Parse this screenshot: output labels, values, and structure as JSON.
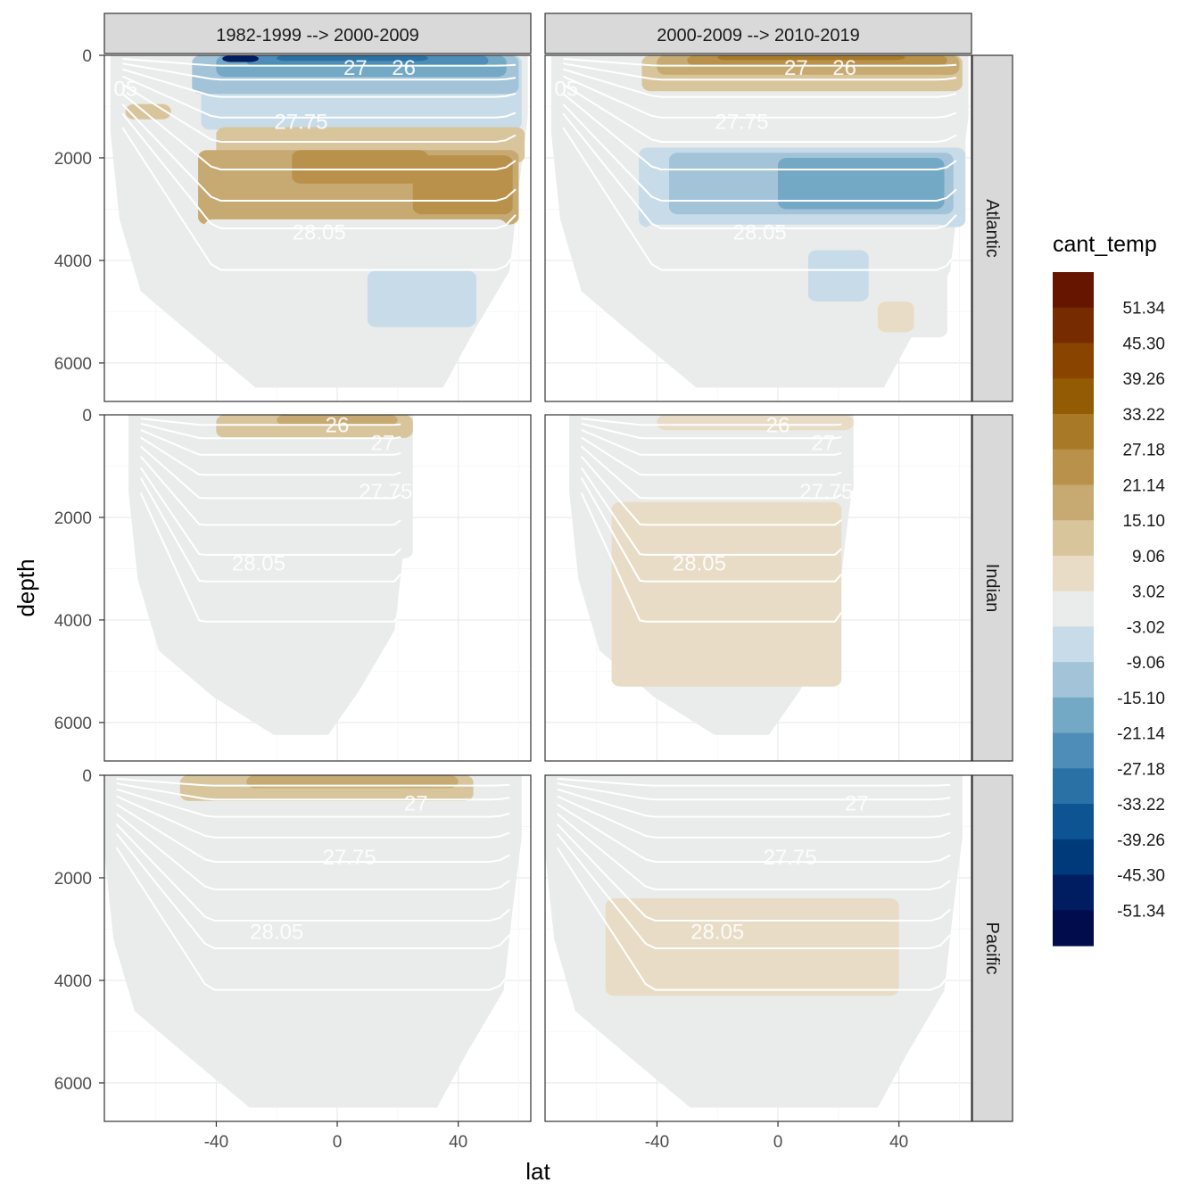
{
  "chart_data": {
    "type": "heatmap",
    "title": "",
    "xlabel": "lat",
    "ylabel": "depth",
    "x_ticks": [
      -40,
      0,
      40
    ],
    "x_tick_labels": [
      "-40",
      "0",
      "40"
    ],
    "y_ticks": [
      0,
      2000,
      4000,
      6000
    ],
    "y_tick_labels": [
      "0",
      "2000",
      "4000",
      "6000"
    ],
    "xlim": [
      -77,
      64
    ],
    "ylim": [
      6750,
      0
    ],
    "y_reversed": true,
    "grid": true,
    "columns": [
      "1982-1999 --> 2000-2009",
      "2000-2009 --> 2010-2019"
    ],
    "rows": [
      "Atlantic",
      "Indian",
      "Pacific"
    ],
    "legend": {
      "title": "cant_temp",
      "position": "right",
      "breaks": [
        "51.34",
        "45.30",
        "39.26",
        "33.22",
        "27.18",
        "21.14",
        "15.10",
        "9.06",
        "3.02",
        "-3.02",
        "-9.06",
        "-15.10",
        "-21.14",
        "-27.18",
        "-33.22",
        "-39.26",
        "-45.30",
        "-51.34"
      ],
      "colors": [
        "#651500",
        "#772c00",
        "#894400",
        "#935c04",
        "#a87a27",
        "#b9914b",
        "#c7aa72",
        "#d8c59c",
        "#e8dcc6",
        "#e9ecea",
        "#c8dbe8",
        "#a2c3d8",
        "#74a9c6",
        "#4d8db7",
        "#2a71a5",
        "#0c5592",
        "#003a7b",
        "#001d61",
        "#000c4b"
      ]
    },
    "isopycnal_labels": [
      "26",
      "27",
      "27.75",
      "28.05"
    ],
    "panels": [
      {
        "row": "Atlantic",
        "col": "1982-1999 --> 2000-2009",
        "lat_range": [
          -75,
          63
        ],
        "max_depth": 6750,
        "contour_labels": [
          {
            "text": "27",
            "lat": 6,
            "depth": 240
          },
          {
            "text": "26",
            "lat": 22,
            "depth": 240
          },
          {
            "text": "27.75",
            "lat": -12,
            "depth": 1300
          },
          {
            "text": "28.05",
            "lat": -6,
            "depth": 3450
          },
          {
            "text": "05",
            "lat": -70,
            "depth": 650
          }
        ],
        "patches": [
          {
            "lat": [
              -45,
              61
            ],
            "depth": [
              0,
              1450
            ],
            "value": -9.06
          },
          {
            "lat": [
              -48,
              60
            ],
            "depth": [
              0,
              750
            ],
            "value": -15.1
          },
          {
            "lat": [
              -40,
              56
            ],
            "depth": [
              0,
              420
            ],
            "value": -21.14
          },
          {
            "lat": [
              -30,
              50
            ],
            "depth": [
              0,
              210
            ],
            "value": -27.18
          },
          {
            "lat": [
              -20,
              30
            ],
            "depth": [
              0,
              110
            ],
            "value": -33.22
          },
          {
            "lat": [
              -38,
              -26
            ],
            "depth": [
              0,
              130
            ],
            "value": -51.34
          },
          {
            "lat": [
              -70,
              -55
            ],
            "depth": [
              950,
              1250
            ],
            "value": 9.06
          },
          {
            "lat": [
              -40,
              62
            ],
            "depth": [
              1400,
              2100
            ],
            "value": 9.06
          },
          {
            "lat": [
              -46,
              60
            ],
            "depth": [
              1850,
              3300
            ],
            "value": 15.1
          },
          {
            "lat": [
              -15,
              30
            ],
            "depth": [
              1850,
              2500
            ],
            "value": 21.14
          },
          {
            "lat": [
              25,
              58
            ],
            "depth": [
              1950,
              3100
            ],
            "value": 21.14
          },
          {
            "lat": [
              -44,
              56
            ],
            "depth": [
              3200,
              4300
            ],
            "value": -3.02
          },
          {
            "lat": [
              10,
              46
            ],
            "depth": [
              4200,
              5300
            ],
            "value": -9.06
          }
        ]
      },
      {
        "row": "Atlantic",
        "col": "2000-2009 --> 2010-2019",
        "lat_range": [
          -75,
          63
        ],
        "max_depth": 6750,
        "contour_labels": [
          {
            "text": "27",
            "lat": 6,
            "depth": 240
          },
          {
            "text": "26",
            "lat": 22,
            "depth": 240
          },
          {
            "text": "27.75",
            "lat": -12,
            "depth": 1300
          },
          {
            "text": "28.05",
            "lat": -6,
            "depth": 3450
          },
          {
            "text": "05",
            "lat": -70,
            "depth": 650
          }
        ],
        "patches": [
          {
            "lat": [
              -45,
              61
            ],
            "depth": [
              0,
              700
            ],
            "value": 9.06
          },
          {
            "lat": [
              -40,
              60
            ],
            "depth": [
              0,
              380
            ],
            "value": 15.1
          },
          {
            "lat": [
              -30,
              56
            ],
            "depth": [
              0,
              200
            ],
            "value": 21.14
          },
          {
            "lat": [
              -20,
              42
            ],
            "depth": [
              0,
              90
            ],
            "value": 27.18
          },
          {
            "lat": [
              -43,
              62
            ],
            "depth": [
              1500,
              2100
            ],
            "value": -3.02
          },
          {
            "lat": [
              -46,
              62
            ],
            "depth": [
              1800,
              3350
            ],
            "value": -9.06
          },
          {
            "lat": [
              -36,
              58
            ],
            "depth": [
              1900,
              3100
            ],
            "value": -15.1
          },
          {
            "lat": [
              0,
              55
            ],
            "depth": [
              2000,
              3000
            ],
            "value": -21.14
          },
          {
            "lat": [
              -44,
              56
            ],
            "depth": [
              3300,
              5500
            ],
            "value": -3.02
          },
          {
            "lat": [
              10,
              30
            ],
            "depth": [
              3800,
              4800
            ],
            "value": -9.06
          },
          {
            "lat": [
              33,
              45
            ],
            "depth": [
              4800,
              5400
            ],
            "value": 3.02
          }
        ]
      },
      {
        "row": "Indian",
        "col": "1982-1999 --> 2000-2009",
        "lat_range": [
          -69,
          25
        ],
        "max_depth": 6500,
        "contour_labels": [
          {
            "text": "26",
            "lat": 0,
            "depth": 200
          },
          {
            "text": "27",
            "lat": 15,
            "depth": 550
          },
          {
            "text": "27.75",
            "lat": 16,
            "depth": 1500
          },
          {
            "text": "28.05",
            "lat": -26,
            "depth": 2900
          }
        ],
        "patches": [
          {
            "lat": [
              -40,
              25
            ],
            "depth": [
              0,
              450
            ],
            "value": 9.06
          },
          {
            "lat": [
              -20,
              20
            ],
            "depth": [
              0,
              200
            ],
            "value": 15.1
          },
          {
            "lat": [
              -54,
              25
            ],
            "depth": [
              1050,
              2800
            ],
            "value": -3.02
          }
        ]
      },
      {
        "row": "Indian",
        "col": "2000-2009 --> 2010-2019",
        "lat_range": [
          -69,
          25
        ],
        "max_depth": 6500,
        "contour_labels": [
          {
            "text": "26",
            "lat": 0,
            "depth": 200
          },
          {
            "text": "27",
            "lat": 15,
            "depth": 550
          },
          {
            "text": "27.75",
            "lat": 16,
            "depth": 1500
          },
          {
            "text": "28.05",
            "lat": -26,
            "depth": 2900
          }
        ],
        "patches": [
          {
            "lat": [
              -40,
              25
            ],
            "depth": [
              0,
              300
            ],
            "value": 3.02
          },
          {
            "lat": [
              -40,
              25
            ],
            "depth": [
              1150,
              1550
            ],
            "value": -3.02
          },
          {
            "lat": [
              -55,
              21
            ],
            "depth": [
              1700,
              5300
            ],
            "value": 3.02
          }
        ]
      },
      {
        "row": "Pacific",
        "col": "1982-1999 --> 2000-2009",
        "lat_range": [
          -77,
          61
        ],
        "max_depth": 6750,
        "contour_labels": [
          {
            "text": "27",
            "lat": 26,
            "depth": 550
          },
          {
            "text": "27.75",
            "lat": 4,
            "depth": 1600
          },
          {
            "text": "28.05",
            "lat": -20,
            "depth": 3050
          }
        ],
        "patches": [
          {
            "lat": [
              -52,
              45
            ],
            "depth": [
              0,
              500
            ],
            "value": 9.06
          },
          {
            "lat": [
              -30,
              40
            ],
            "depth": [
              0,
              250
            ],
            "value": 15.1
          },
          {
            "lat": [
              -58,
              47
            ],
            "depth": [
              1300,
              2650
            ],
            "value": -3.02
          }
        ]
      },
      {
        "row": "Pacific",
        "col": "2000-2009 --> 2010-2019",
        "lat_range": [
          -77,
          61
        ],
        "max_depth": 6750,
        "contour_labels": [
          {
            "text": "27",
            "lat": 26,
            "depth": 550
          },
          {
            "text": "27.75",
            "lat": 4,
            "depth": 1600
          },
          {
            "text": "28.05",
            "lat": -20,
            "depth": 3050
          }
        ],
        "patches": [
          {
            "lat": [
              -30,
              20
            ],
            "depth": [
              1100,
              1400
            ],
            "value": -3.02
          },
          {
            "lat": [
              -57,
              40
            ],
            "depth": [
              2400,
              4300
            ],
            "value": 3.02
          }
        ]
      }
    ]
  }
}
